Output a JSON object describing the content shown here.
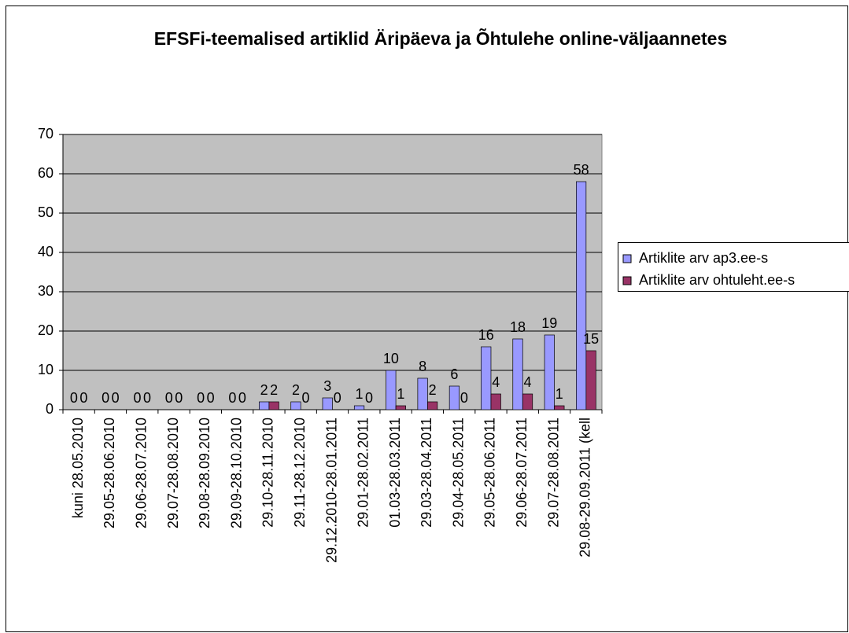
{
  "chart_data": {
    "type": "bar",
    "title": "EFSFi-teemalised artiklid Äripäeva ja Õhtulehe online-väljaannetes",
    "categories": [
      "kuni 28.05.2010",
      "29.05-28.06.2010",
      "29.06-28.07.2010",
      "29.07-28.08.2010",
      "29.08-28.09.2010",
      "29.09-28.10.2010",
      "29.10-28.11.2010",
      "29.11-28.12.2010",
      "29.12.2010-28.01.2011",
      "29.01-28.02.2011",
      "01.03-28.03.2011",
      "29.03-28.04.2011",
      "29.04-28.05.2011",
      "29.05-28.06.2011",
      "29.06-28.07.2011",
      "29.07-28.08.2011",
      "29.08-29.09.2011  (kell"
    ],
    "series": [
      {
        "name": "Artiklite arv ap3.ee-s",
        "color": "#9999ff",
        "values": [
          0,
          0,
          0,
          0,
          0,
          0,
          2,
          2,
          3,
          1,
          10,
          8,
          6,
          16,
          18,
          19,
          58
        ]
      },
      {
        "name": "Artiklite arv ohtuleht.ee-s",
        "color": "#993366",
        "values": [
          0,
          0,
          0,
          0,
          0,
          0,
          2,
          0,
          0,
          0,
          1,
          2,
          0,
          4,
          4,
          1,
          15
        ]
      }
    ],
    "ylim": [
      0,
      70
    ],
    "yticks": [
      0,
      10,
      20,
      30,
      40,
      50,
      60,
      70
    ],
    "grid": true,
    "legend": "right"
  }
}
